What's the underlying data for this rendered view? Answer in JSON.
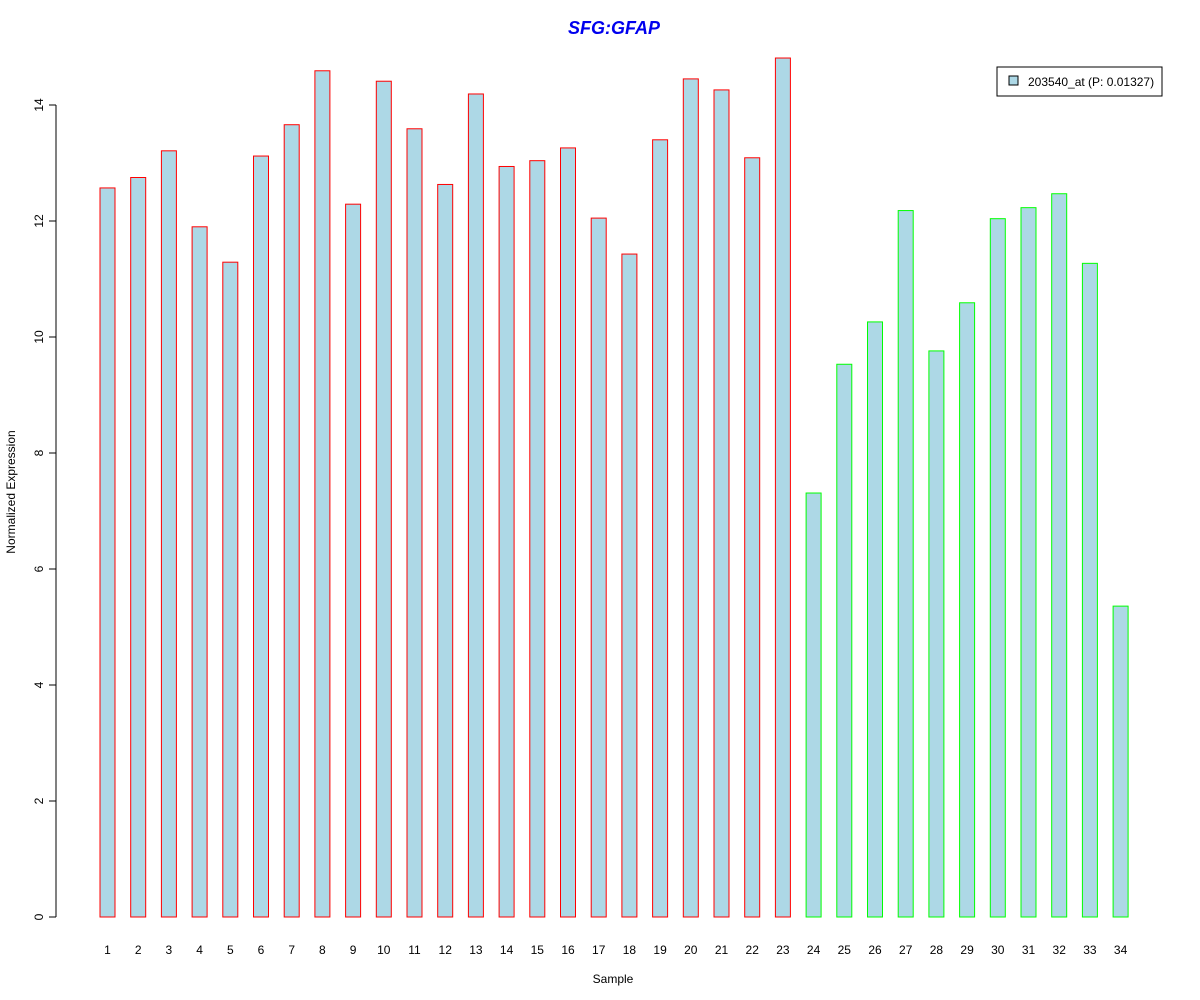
{
  "chart_data": {
    "type": "bar",
    "title": "SFG:GFAP",
    "xlabel": "Sample",
    "ylabel": "Normalized Expression",
    "ylim": [
      0,
      14.8
    ],
    "yticks": [
      0,
      2,
      4,
      6,
      8,
      10,
      12,
      14
    ],
    "grid": false,
    "legend_position": "top-right",
    "categories": [
      "1",
      "2",
      "3",
      "4",
      "5",
      "6",
      "7",
      "8",
      "9",
      "10",
      "11",
      "12",
      "13",
      "14",
      "15",
      "16",
      "17",
      "18",
      "19",
      "20",
      "21",
      "22",
      "23",
      "24",
      "25",
      "26",
      "27",
      "28",
      "29",
      "30",
      "31",
      "32",
      "33",
      "34"
    ],
    "series": [
      {
        "name": "203540_at (P: 0.01327)",
        "values": [
          12.57,
          12.75,
          13.21,
          11.9,
          11.29,
          13.12,
          13.66,
          14.59,
          12.29,
          14.41,
          13.59,
          12.63,
          14.19,
          12.94,
          13.04,
          13.26,
          12.05,
          11.43,
          13.4,
          14.45,
          14.26,
          13.09,
          14.81,
          7.31,
          9.53,
          10.26,
          12.18,
          9.76,
          10.59,
          12.04,
          12.23,
          12.47,
          11.27,
          5.36
        ]
      }
    ],
    "group_sizes": [
      23,
      11
    ],
    "colors": {
      "fill": "#add8e6",
      "group_borders": [
        "#ff0000",
        "#00ff00"
      ],
      "title": "#0000ee"
    }
  }
}
